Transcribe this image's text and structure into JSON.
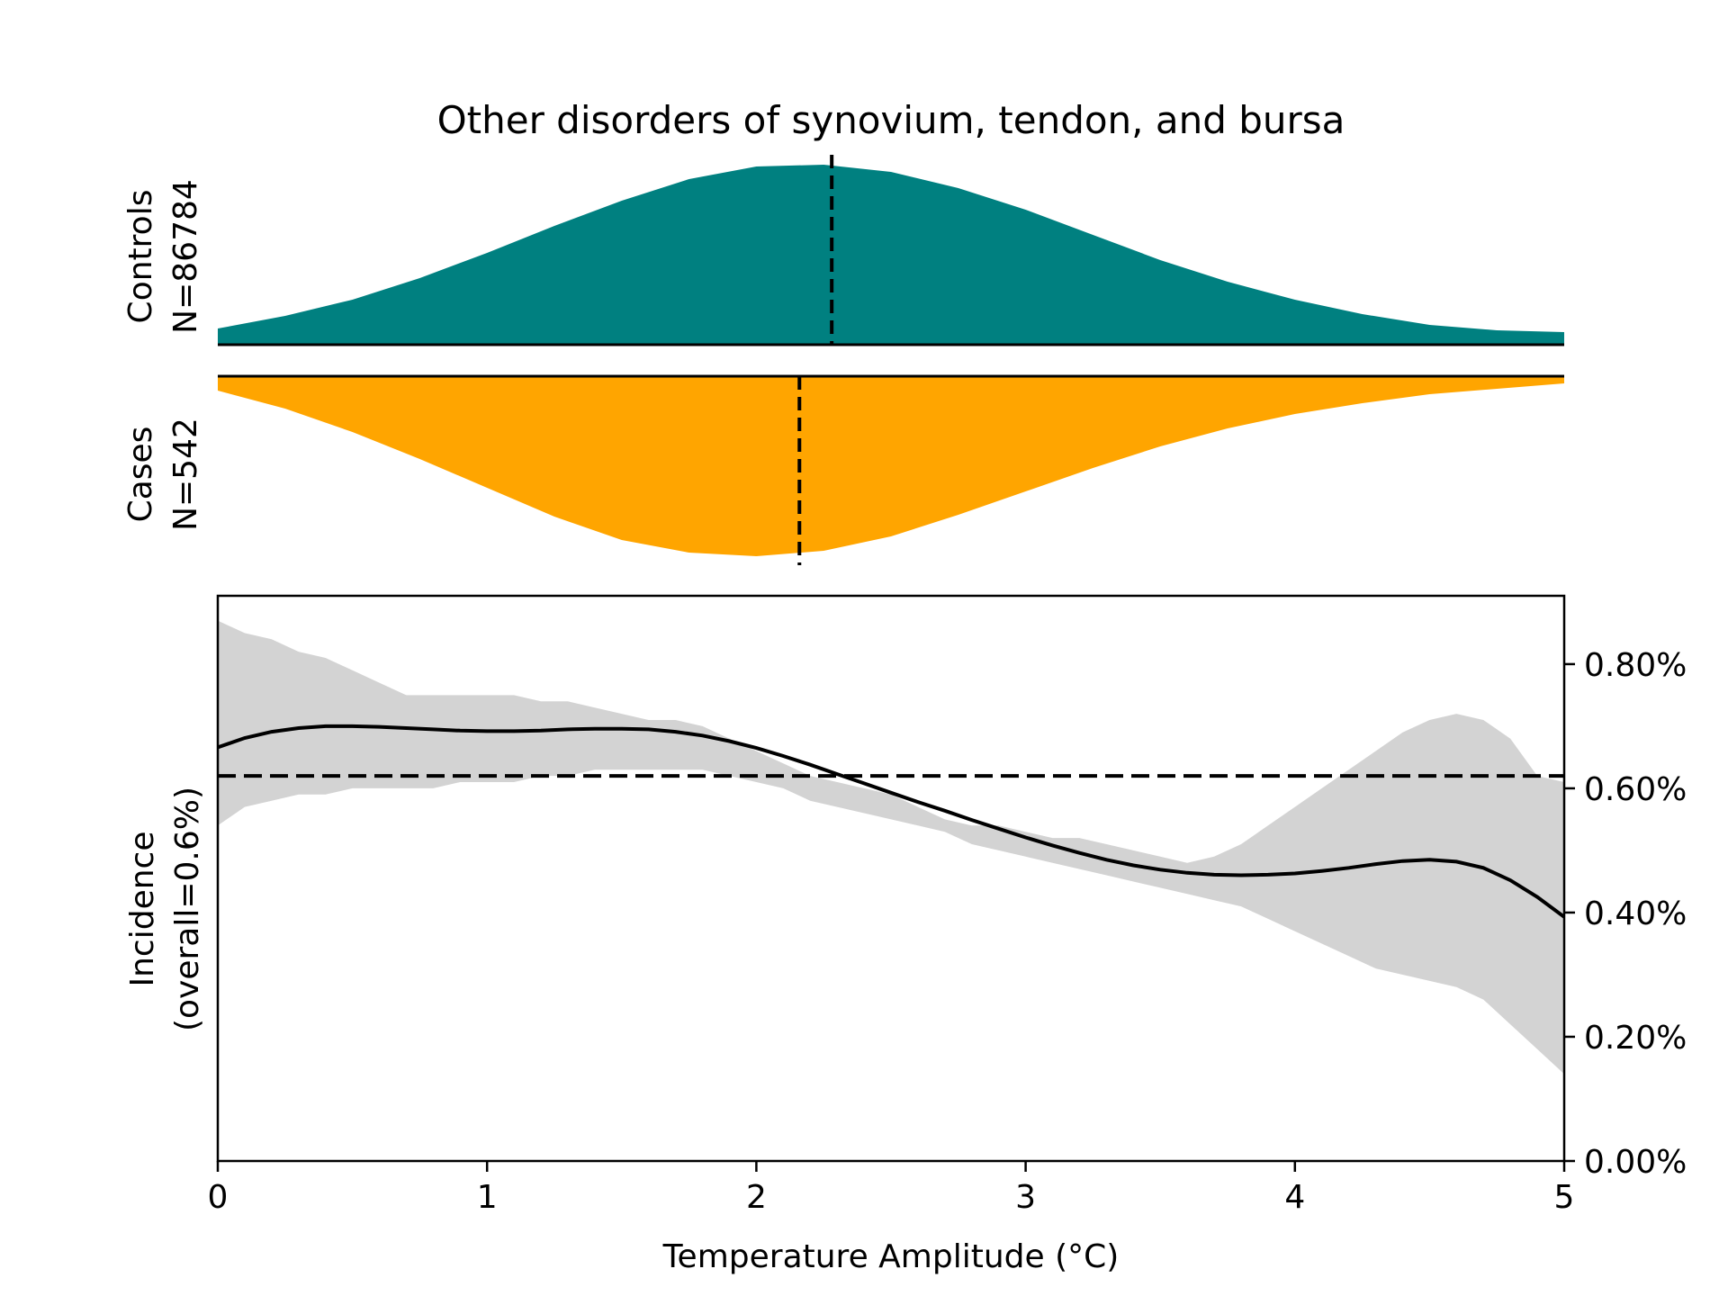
{
  "chart_data": {
    "type": "area",
    "title": "Other disorders of synovium, tendon, and bursa",
    "xlabel": "Temperature Amplitude (°C)",
    "xlim": [
      0,
      5
    ],
    "x_ticks": [
      "0",
      "1",
      "2",
      "3",
      "4",
      "5"
    ],
    "x_tick_values": [
      0,
      1,
      2,
      3,
      4,
      5
    ],
    "colors": {
      "controls": "#008080",
      "cases": "#FFA500",
      "band": "#D3D3D3",
      "line": "#000000"
    },
    "controls": {
      "label_line1": "Controls",
      "label_line2": "N=86784",
      "mean": 2.28,
      "density_x": [
        0,
        0.25,
        0.5,
        0.75,
        1,
        1.25,
        1.5,
        1.75,
        2,
        2.25,
        2.5,
        2.75,
        3,
        3.25,
        3.5,
        3.75,
        4,
        4.25,
        4.5,
        4.75,
        5
      ],
      "density_y": [
        0.09,
        0.16,
        0.25,
        0.37,
        0.51,
        0.66,
        0.8,
        0.92,
        0.99,
        1.0,
        0.96,
        0.87,
        0.75,
        0.61,
        0.47,
        0.35,
        0.25,
        0.17,
        0.11,
        0.08,
        0.07
      ]
    },
    "cases": {
      "label_line1": "Cases",
      "label_line2": "N=542",
      "mean": 2.16,
      "density_x": [
        0,
        0.25,
        0.5,
        0.75,
        1,
        1.25,
        1.5,
        1.75,
        2,
        2.25,
        2.5,
        2.75,
        3,
        3.25,
        3.5,
        3.75,
        4,
        4.25,
        4.5,
        4.75,
        5
      ],
      "density_y": [
        0.08,
        0.18,
        0.31,
        0.46,
        0.62,
        0.78,
        0.91,
        0.98,
        1.0,
        0.97,
        0.89,
        0.77,
        0.64,
        0.51,
        0.39,
        0.29,
        0.21,
        0.15,
        0.1,
        0.07,
        0.04
      ]
    },
    "incidence": {
      "ylabel_line1": "Incidence",
      "ylabel_line2": "(overall=0.6%)",
      "ylim": [
        0,
        0.0091
      ],
      "y_ticks": [
        "0.00%",
        "0.20%",
        "0.40%",
        "0.60%",
        "0.80%"
      ],
      "y_tick_values": [
        0,
        0.002,
        0.004,
        0.006,
        0.008
      ],
      "overall": 0.0062,
      "x": [
        0,
        0.1,
        0.2,
        0.3,
        0.4,
        0.5,
        0.6,
        0.7,
        0.8,
        0.9,
        1.0,
        1.1,
        1.2,
        1.3,
        1.4,
        1.5,
        1.6,
        1.7,
        1.8,
        1.9,
        2.0,
        2.1,
        2.2,
        2.3,
        2.4,
        2.5,
        2.6,
        2.7,
        2.8,
        2.9,
        3.0,
        3.1,
        3.2,
        3.3,
        3.4,
        3.5,
        3.6,
        3.7,
        3.8,
        3.9,
        4.0,
        4.1,
        4.2,
        4.3,
        4.4,
        4.5,
        4.6,
        4.7,
        4.8,
        4.9,
        5.0
      ],
      "y": [
        0.00666,
        0.00681,
        0.00691,
        0.00697,
        0.007,
        0.007,
        0.00699,
        0.00697,
        0.00695,
        0.00693,
        0.00692,
        0.00692,
        0.00693,
        0.00695,
        0.00696,
        0.00696,
        0.00695,
        0.00691,
        0.00685,
        0.00676,
        0.00665,
        0.00652,
        0.00638,
        0.00623,
        0.00608,
        0.00593,
        0.00578,
        0.00564,
        0.00549,
        0.00535,
        0.00521,
        0.00508,
        0.00496,
        0.00485,
        0.00476,
        0.00469,
        0.00464,
        0.00461,
        0.0046,
        0.00461,
        0.00463,
        0.00467,
        0.00472,
        0.00478,
        0.00483,
        0.00485,
        0.00482,
        0.00472,
        0.00452,
        0.00425,
        0.00393
      ],
      "upper": [
        0.0087,
        0.0085,
        0.0084,
        0.0082,
        0.0081,
        0.0079,
        0.0077,
        0.0075,
        0.0075,
        0.0075,
        0.0075,
        0.0075,
        0.0074,
        0.0074,
        0.0073,
        0.0072,
        0.0071,
        0.0071,
        0.007,
        0.0068,
        0.0066,
        0.0064,
        0.0062,
        0.0061,
        0.006,
        0.0059,
        0.0057,
        0.0055,
        0.0054,
        0.0054,
        0.0053,
        0.0052,
        0.0052,
        0.0051,
        0.005,
        0.0049,
        0.0048,
        0.0049,
        0.0051,
        0.0054,
        0.0057,
        0.006,
        0.0063,
        0.0066,
        0.0069,
        0.0071,
        0.0072,
        0.0071,
        0.0068,
        0.0062,
        0.0061
      ],
      "lower": [
        0.0054,
        0.0057,
        0.0058,
        0.0059,
        0.0059,
        0.006,
        0.006,
        0.006,
        0.006,
        0.0061,
        0.0061,
        0.0061,
        0.0062,
        0.0062,
        0.0063,
        0.0063,
        0.0063,
        0.0063,
        0.0063,
        0.0062,
        0.0061,
        0.006,
        0.0058,
        0.0057,
        0.0056,
        0.0055,
        0.0054,
        0.0053,
        0.0051,
        0.005,
        0.0049,
        0.0048,
        0.0047,
        0.0046,
        0.0045,
        0.0044,
        0.0043,
        0.0042,
        0.0041,
        0.0039,
        0.0037,
        0.0035,
        0.0033,
        0.0031,
        0.003,
        0.0029,
        0.0028,
        0.0026,
        0.0022,
        0.0018,
        0.0014
      ]
    }
  }
}
